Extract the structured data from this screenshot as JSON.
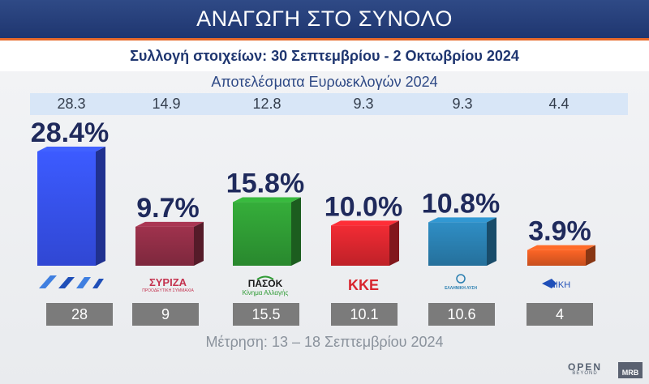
{
  "header": {
    "title": "ΑΝΑΓΩΓΗ ΣΤΟ ΣΥΝΟΛΟ"
  },
  "subheader": {
    "title": "Συλλογή στοιχείων: 30 Σεπτεμβρίου  - 2 Οκτωβρίου 2024"
  },
  "euro": {
    "title": "Αποτελέσματα Ευρωεκλογών 2024"
  },
  "footer": {
    "note": "Μέτρηση: 13 – 18 Σεπτεμβρίου 2024",
    "logo_open": "OPEN",
    "logo_beyond": "BEYOND",
    "logo_mrb": "MRB"
  },
  "chart_data": {
    "type": "bar",
    "categories": [
      "ΝΔ",
      "ΣΥΡΙΖΑ",
      "ΠΑΣΟΚ",
      "ΚΚΕ",
      "ΕΛΛΗΝΙΚΗ ΛΥΣΗ",
      "ΝΙΚΗ"
    ],
    "values": [
      28.4,
      9.7,
      15.8,
      10.0,
      10.8,
      3.9
    ],
    "value_labels": [
      "28.4%",
      "9.7%",
      "15.8%",
      "10.0%",
      "10.8%",
      "3.9%"
    ],
    "euro_results": [
      "28.3",
      "14.9",
      "12.8",
      "9.3",
      "9.3",
      "4.4"
    ],
    "previous_poll": [
      "28",
      "9",
      "15.5",
      "10.1",
      "10.6",
      "4"
    ],
    "party_labels": [
      "",
      "ΣΥΡΙΖΑ",
      "ΠΑΣΟΚ",
      "ΚΚΕ",
      "ΕΛΛΗΝΙΚΗ ΛΥΣΗ",
      "ΝΙΚΗ"
    ],
    "party_sublabels": [
      "",
      "ΠΡΟΟΔΕΥΤΙΚΗ ΣΥΜΜΑΧΙΑ",
      "Κίνημα Αλλαγής",
      "",
      "",
      ""
    ],
    "colors": [
      "#3651f0",
      "#8e2d45",
      "#2f9b34",
      "#d8262e",
      "#2a7fb0",
      "#e25a22"
    ],
    "ylim": [
      0,
      30
    ]
  }
}
